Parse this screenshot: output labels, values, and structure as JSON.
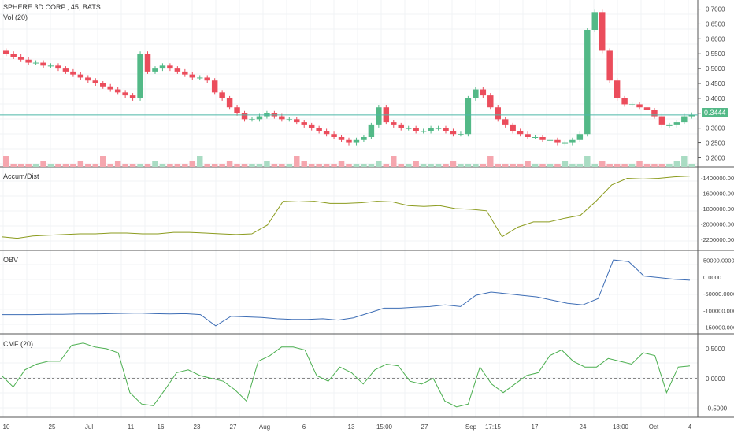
{
  "header": {
    "symbol_line": "SPHERE 3D CORP., 45, BATS",
    "volume_label": "Vol (20)"
  },
  "current_price": "0.3444",
  "panes": {
    "price": {
      "title": "SPHERE 3D CORP., 45, BATS",
      "ticks": [
        "0.7000",
        "0.6500",
        "0.6000",
        "0.5500",
        "0.5000",
        "0.4500",
        "0.4000",
        "0.3500",
        "0.3000",
        "0.2500",
        "0.2000"
      ]
    },
    "accum": {
      "title": "Accum/Dist",
      "ticks": [
        "-1400000.0000",
        "-1600000.0000",
        "-1800000.0000",
        "-2000000.0000",
        "-2200000.0000"
      ]
    },
    "obv": {
      "title": "OBV",
      "ticks": [
        "50000.0000",
        "0.0000",
        "-50000.0000",
        "-100000.0000",
        "-150000.0000"
      ]
    },
    "cmf": {
      "title": "CMF (20)",
      "ticks": [
        "0.5000",
        "0.0000",
        "-0.5000"
      ]
    }
  },
  "x_axis_labels": [
    "10",
    "25",
    "Jul",
    "11",
    "16",
    "23",
    "27",
    "Aug",
    "6",
    "13",
    "15:00",
    "27",
    "Sep",
    "17:15",
    "17",
    "24",
    "18:00",
    "Oct",
    "4"
  ],
  "colors": {
    "up": "#53b987",
    "down": "#eb4d5c",
    "accum_line": "#8b9b1d",
    "obv_line": "#3d6db5",
    "cmf_line": "#4caf50",
    "hline": "#4cb8a8",
    "grid": "#f0f3f5"
  },
  "chart_data": [
    {
      "type": "candlestick",
      "title": "SPHERE 3D CORP., 45, BATS",
      "ylim": [
        0.18,
        0.72
      ],
      "current_price": 0.3444,
      "x_labels": [
        "10",
        "25",
        "Jul",
        "11",
        "16",
        "23",
        "27",
        "Aug",
        "6",
        "13",
        "15:00",
        "27",
        "Sep",
        "17:15",
        "17",
        "24",
        "18:00",
        "Oct",
        "4"
      ],
      "closes": [
        0.55,
        0.54,
        0.53,
        0.52,
        0.52,
        0.51,
        0.51,
        0.5,
        0.49,
        0.48,
        0.47,
        0.46,
        0.45,
        0.44,
        0.43,
        0.42,
        0.41,
        0.4,
        0.55,
        0.49,
        0.5,
        0.51,
        0.5,
        0.49,
        0.48,
        0.47,
        0.47,
        0.46,
        0.42,
        0.4,
        0.37,
        0.35,
        0.33,
        0.33,
        0.34,
        0.35,
        0.34,
        0.33,
        0.33,
        0.32,
        0.31,
        0.3,
        0.29,
        0.28,
        0.27,
        0.26,
        0.25,
        0.26,
        0.27,
        0.31,
        0.37,
        0.32,
        0.31,
        0.3,
        0.3,
        0.29,
        0.29,
        0.3,
        0.3,
        0.29,
        0.28,
        0.28,
        0.4,
        0.43,
        0.41,
        0.37,
        0.33,
        0.31,
        0.29,
        0.28,
        0.27,
        0.27,
        0.26,
        0.26,
        0.25,
        0.25,
        0.26,
        0.28,
        0.63,
        0.69,
        0.56,
        0.46,
        0.4,
        0.38,
        0.38,
        0.37,
        0.36,
        0.34,
        0.31,
        0.31,
        0.32,
        0.34,
        0.345
      ]
    },
    {
      "type": "line",
      "title": "Accum/Dist",
      "ylim": [
        -2300000,
        -1300000
      ],
      "values": [
        -2180000,
        -2200000,
        -2170000,
        -2160000,
        -2150000,
        -2140000,
        -2140000,
        -2130000,
        -2130000,
        -2140000,
        -2140000,
        -2120000,
        -2120000,
        -2130000,
        -2140000,
        -2150000,
        -2140000,
        -2020000,
        -1700000,
        -1710000,
        -1700000,
        -1730000,
        -1730000,
        -1720000,
        -1700000,
        -1710000,
        -1760000,
        -1770000,
        -1760000,
        -1800000,
        -1810000,
        -1830000,
        -2180000,
        -2050000,
        -1980000,
        -1980000,
        -1930000,
        -1890000,
        -1700000,
        -1480000,
        -1390000,
        -1400000,
        -1390000,
        -1370000,
        -1360000
      ]
    },
    {
      "type": "line",
      "title": "OBV",
      "ylim": [
        -160000,
        70000
      ],
      "values": [
        -115000,
        -115000,
        -115000,
        -114000,
        -114000,
        -113000,
        -113000,
        -112000,
        -111000,
        -110000,
        -112000,
        -113000,
        -112000,
        -115000,
        -150000,
        -120000,
        -122000,
        -124000,
        -128000,
        -130000,
        -130000,
        -128000,
        -132000,
        -125000,
        -110000,
        -95000,
        -95000,
        -92000,
        -90000,
        -85000,
        -90000,
        -55000,
        -45000,
        -50000,
        -55000,
        -60000,
        -70000,
        -80000,
        -85000,
        -65000,
        55000,
        50000,
        5000,
        0,
        -5000,
        -8000
      ]
    },
    {
      "type": "line",
      "title": "CMF (20)",
      "ylim": [
        -0.6,
        0.7
      ],
      "values": [
        0.05,
        -0.15,
        0.15,
        0.25,
        0.3,
        0.3,
        0.58,
        0.62,
        0.55,
        0.52,
        0.45,
        -0.25,
        -0.45,
        -0.48,
        -0.2,
        0.1,
        0.15,
        0.05,
        0.0,
        -0.05,
        -0.2,
        -0.4,
        0.3,
        0.4,
        0.55,
        0.55,
        0.5,
        0.05,
        -0.05,
        0.2,
        0.1,
        -0.1,
        0.15,
        0.25,
        0.22,
        -0.05,
        -0.1,
        0.0,
        -0.4,
        -0.5,
        -0.45,
        0.2,
        -0.1,
        -0.25,
        -0.1,
        0.05,
        0.1,
        0.4,
        0.5,
        0.3,
        0.2,
        0.2,
        0.35,
        0.3,
        0.25,
        0.45,
        0.4,
        -0.25,
        0.2,
        0.22
      ]
    }
  ]
}
